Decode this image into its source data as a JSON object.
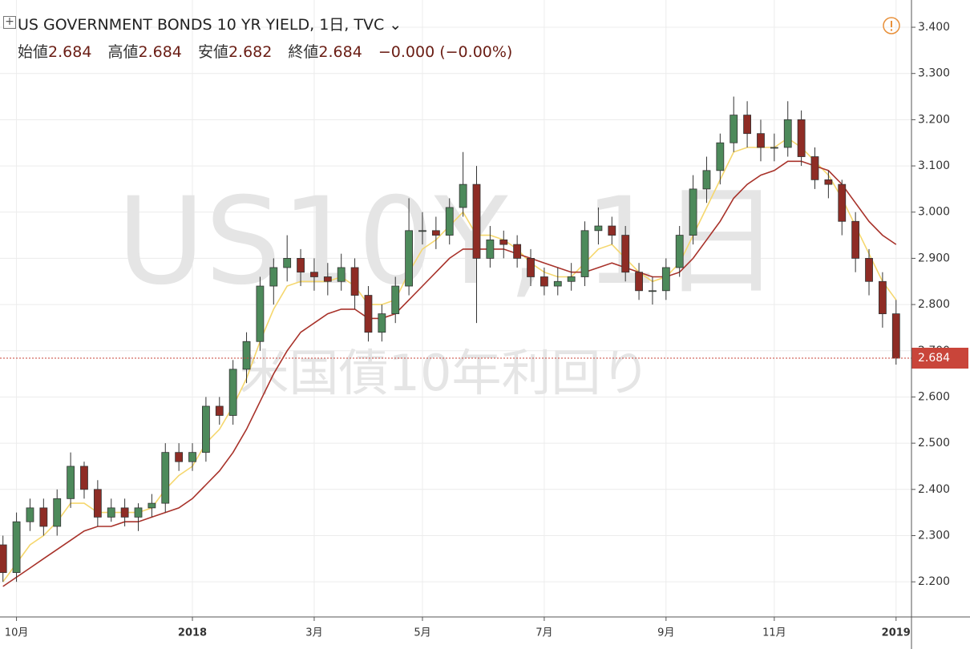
{
  "chart_data": {
    "type": "candlestick",
    "title": "US GOVERNMENT BONDS 10 YR YIELD, 1日, TVC",
    "ohlc_legend": [
      {
        "label": "始値",
        "value": 2.684
      },
      {
        "label": "高値",
        "value": 2.684
      },
      {
        "label": "安値",
        "value": 2.682
      },
      {
        "label": "終値",
        "value": 2.684
      }
    ],
    "change": "−0.000 (−0.00%)",
    "watermark": "US10Y, 1日",
    "watermark_sub": "米国債10年利回り",
    "categories": [
      null,
      "10月",
      null,
      null,
      null,
      null,
      null,
      null,
      null,
      null,
      null,
      null,
      null,
      null,
      "2018",
      null,
      null,
      null,
      null,
      null,
      null,
      null,
      null,
      "3月",
      null,
      null,
      null,
      null,
      null,
      null,
      null,
      "5月",
      null,
      null,
      null,
      null,
      null,
      null,
      null,
      null,
      "7月",
      null,
      null,
      null,
      null,
      null,
      null,
      null,
      null,
      "9月",
      null,
      null,
      null,
      null,
      null,
      null,
      null,
      "11月",
      null,
      null,
      null,
      null,
      null,
      null,
      null,
      null,
      "2019"
    ],
    "open": [
      2.28,
      2.22,
      2.33,
      2.36,
      2.32,
      2.38,
      2.45,
      2.4,
      2.34,
      2.36,
      2.34,
      2.36,
      2.37,
      2.48,
      2.46,
      2.48,
      2.58,
      2.56,
      2.66,
      2.72,
      2.84,
      2.88,
      2.9,
      2.87,
      2.86,
      2.85,
      2.88,
      2.82,
      2.74,
      2.78,
      2.84,
      2.96,
      2.96,
      2.95,
      3.01,
      3.06,
      2.9,
      2.94,
      2.93,
      2.9,
      2.86,
      2.84,
      2.85,
      2.86,
      2.96,
      2.97,
      2.95,
      2.87,
      2.83,
      2.83,
      2.88,
      2.95,
      3.05,
      3.09,
      3.15,
      3.21,
      3.17,
      3.14,
      3.14,
      3.2,
      3.12,
      3.07,
      3.06,
      2.98,
      2.9,
      2.85,
      2.78
    ],
    "high": [
      2.3,
      2.35,
      2.38,
      2.38,
      2.4,
      2.48,
      2.46,
      2.42,
      2.38,
      2.38,
      2.37,
      2.39,
      2.5,
      2.5,
      2.5,
      2.6,
      2.6,
      2.68,
      2.74,
      2.86,
      2.9,
      2.95,
      2.92,
      2.9,
      2.89,
      2.91,
      2.9,
      2.84,
      2.8,
      2.86,
      3.03,
      3.0,
      2.99,
      3.03,
      3.13,
      3.1,
      2.97,
      2.96,
      2.95,
      2.92,
      2.88,
      2.88,
      2.89,
      2.98,
      3.01,
      2.99,
      2.97,
      2.89,
      2.86,
      2.9,
      2.97,
      3.08,
      3.12,
      3.17,
      3.25,
      3.24,
      3.2,
      3.17,
      3.24,
      3.22,
      3.14,
      3.09,
      3.07,
      3.0,
      2.92,
      2.87,
      2.81
    ],
    "low": [
      2.2,
      2.2,
      2.31,
      2.3,
      2.3,
      2.36,
      2.38,
      2.32,
      2.33,
      2.32,
      2.31,
      2.34,
      2.35,
      2.44,
      2.44,
      2.46,
      2.54,
      2.54,
      2.63,
      2.7,
      2.8,
      2.85,
      2.84,
      2.83,
      2.82,
      2.83,
      2.79,
      2.72,
      2.72,
      2.76,
      2.82,
      2.93,
      2.92,
      2.93,
      2.99,
      2.76,
      2.88,
      2.9,
      2.88,
      2.84,
      2.82,
      2.82,
      2.83,
      2.84,
      2.93,
      2.93,
      2.85,
      2.81,
      2.8,
      2.81,
      2.86,
      2.93,
      3.02,
      3.06,
      3.13,
      3.14,
      3.11,
      3.11,
      3.12,
      3.1,
      3.05,
      3.03,
      2.95,
      2.87,
      2.82,
      2.75,
      2.67
    ],
    "close": [
      2.22,
      2.33,
      2.36,
      2.32,
      2.38,
      2.45,
      2.4,
      2.34,
      2.36,
      2.34,
      2.36,
      2.37,
      2.48,
      2.46,
      2.48,
      2.58,
      2.56,
      2.66,
      2.72,
      2.84,
      2.88,
      2.9,
      2.87,
      2.86,
      2.85,
      2.88,
      2.82,
      2.74,
      2.78,
      2.84,
      2.96,
      2.96,
      2.95,
      3.01,
      3.06,
      2.9,
      2.94,
      2.93,
      2.9,
      2.86,
      2.84,
      2.85,
      2.86,
      2.96,
      2.97,
      2.95,
      2.87,
      2.83,
      2.83,
      2.88,
      2.95,
      3.05,
      3.09,
      3.15,
      3.21,
      3.17,
      3.14,
      3.14,
      3.2,
      3.12,
      3.07,
      3.06,
      2.98,
      2.9,
      2.85,
      2.78,
      2.684
    ],
    "up_color": "#4d8a5b",
    "down_color": "#8e2c25",
    "ribbon": [
      {
        "color": "#f5d76e",
        "values": [
          2.2,
          2.24,
          2.28,
          2.3,
          2.33,
          2.37,
          2.37,
          2.35,
          2.35,
          2.35,
          2.35,
          2.36,
          2.4,
          2.43,
          2.45,
          2.5,
          2.53,
          2.58,
          2.64,
          2.72,
          2.79,
          2.84,
          2.85,
          2.85,
          2.85,
          2.86,
          2.84,
          2.8,
          2.8,
          2.81,
          2.87,
          2.92,
          2.94,
          2.97,
          3.0,
          2.95,
          2.95,
          2.94,
          2.92,
          2.89,
          2.87,
          2.86,
          2.86,
          2.89,
          2.92,
          2.93,
          2.9,
          2.87,
          2.85,
          2.86,
          2.89,
          2.95,
          3.01,
          3.07,
          3.13,
          3.14,
          3.14,
          3.14,
          3.16,
          3.14,
          3.11,
          3.08,
          3.03,
          2.97,
          2.91,
          2.85,
          2.81
        ]
      },
      {
        "color": "#a8322a",
        "values": [
          2.19,
          2.21,
          2.23,
          2.25,
          2.27,
          2.29,
          2.31,
          2.32,
          2.32,
          2.33,
          2.33,
          2.34,
          2.35,
          2.36,
          2.38,
          2.41,
          2.44,
          2.48,
          2.53,
          2.59,
          2.65,
          2.7,
          2.74,
          2.76,
          2.78,
          2.79,
          2.79,
          2.77,
          2.77,
          2.78,
          2.81,
          2.84,
          2.87,
          2.9,
          2.92,
          2.92,
          2.92,
          2.92,
          2.91,
          2.9,
          2.89,
          2.88,
          2.87,
          2.87,
          2.88,
          2.89,
          2.88,
          2.87,
          2.86,
          2.86,
          2.87,
          2.9,
          2.94,
          2.98,
          3.03,
          3.06,
          3.08,
          3.09,
          3.11,
          3.11,
          3.1,
          3.09,
          3.06,
          3.02,
          2.98,
          2.95,
          2.93
        ]
      }
    ],
    "last_color": "#c9453a",
    "ylim": [
      2.124,
      3.459
    ],
    "yticks": [
      {
        "value": 2.2,
        "label": "2.200"
      },
      {
        "value": 2.3,
        "label": "2.300"
      },
      {
        "value": 2.4,
        "label": "2.400"
      },
      {
        "value": 2.5,
        "label": "2.500"
      },
      {
        "value": 2.6,
        "label": "2.600"
      },
      {
        "value": 2.7,
        "label": "2.700"
      },
      {
        "value": 2.8,
        "label": "2.800"
      },
      {
        "value": 2.9,
        "label": "2.900"
      },
      {
        "value": 3.0,
        "label": "3.000"
      },
      {
        "value": 3.1,
        "label": "3.100"
      },
      {
        "value": 3.2,
        "label": "3.200"
      },
      {
        "value": 3.3,
        "label": "3.300"
      },
      {
        "value": 3.4,
        "label": "3.400"
      }
    ],
    "grid": true
  }
}
